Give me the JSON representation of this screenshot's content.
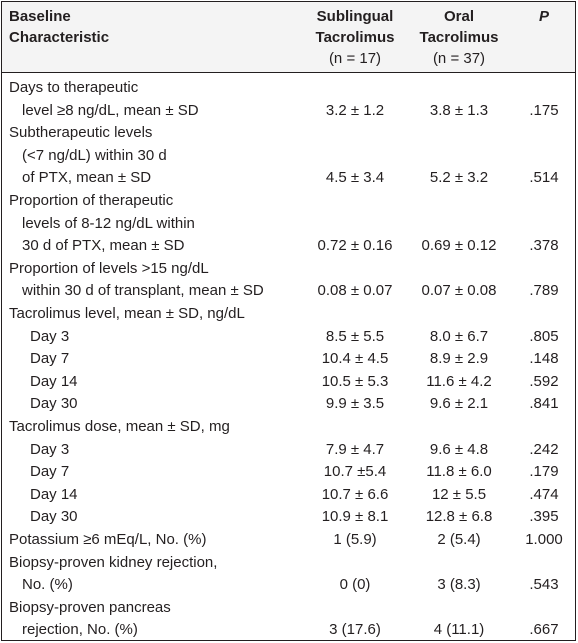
{
  "header": {
    "col1_line1": "Baseline",
    "col1_line2": "Characteristic",
    "col2_line1": "Sublingual",
    "col2_line2": "Tacrolimus",
    "col2_line3": "(n = 17)",
    "col3_line1": "Oral",
    "col3_line2": "Tacrolimus",
    "col3_line3": "(n = 37)",
    "col4": "P"
  },
  "rows": [
    {
      "lines": [
        "Days to therapeutic",
        "level ≥8 ng/dL, mean ± SD"
      ],
      "sl": "3.2 ± 1.2",
      "oral": "3.8 ± 1.3",
      "p": ".175"
    },
    {
      "lines": [
        "Subtherapeutic levels",
        "(<7 ng/dL) within 30 d",
        "of PTX, mean ± SD"
      ],
      "sl": "4.5 ± 3.4",
      "oral": "5.2 ± 3.2",
      "p": ".514"
    },
    {
      "lines": [
        "Proportion of therapeutic",
        "levels of 8-12 ng/dL within",
        "30 d of PTX, mean ± SD"
      ],
      "sl": "0.72 ± 0.16",
      "oral": "0.69 ± 0.12",
      "p": ".378"
    },
    {
      "lines": [
        "Proportion of levels >15 ng/dL",
        "within 30 d of transplant, mean ± SD"
      ],
      "sl": "0.08 ± 0.07",
      "oral": "0.07 ± 0.08",
      "p": ".789"
    },
    {
      "lines": [
        "Tacrolimus level, mean ± SD, ng/dL"
      ]
    },
    {
      "sub": "Day 3",
      "sl": "8.5 ± 5.5",
      "oral": "8.0 ± 6.7",
      "p": ".805"
    },
    {
      "sub": "Day 7",
      "sl": "10.4 ± 4.5",
      "oral": "8.9 ± 2.9",
      "p": ".148"
    },
    {
      "sub": "Day 14",
      "sl": "10.5 ± 5.3",
      "oral": "11.6 ± 4.2",
      "p": ".592"
    },
    {
      "sub": "Day 30",
      "sl": "9.9 ± 3.5",
      "oral": "9.6 ± 2.1",
      "p": ".841"
    },
    {
      "lines": [
        "Tacrolimus dose, mean ± SD, mg"
      ]
    },
    {
      "sub": "Day 3",
      "sl": "7.9 ± 4.7",
      "oral": "9.6 ± 4.8",
      "p": ".242"
    },
    {
      "sub": "Day 7",
      "sl": "10.7 ±5.4",
      "oral": "11.8 ± 6.0",
      "p": ".179"
    },
    {
      "sub": "Day 14",
      "sl": "10.7 ± 6.6",
      "oral": "12 ± 5.5",
      "p": ".474"
    },
    {
      "sub": "Day 30",
      "sl": "10.9 ± 8.1",
      "oral": "12.8 ± 6.8",
      "p": ".395"
    },
    {
      "lines": [
        "Potassium ≥6 mEq/L, No. (%)"
      ],
      "sl": "1 (5.9)",
      "oral": "2 (5.4)",
      "p": "1.000"
    },
    {
      "lines": [
        "Biopsy-proven kidney rejection,",
        "No. (%)"
      ],
      "sl": "0 (0)",
      "oral": "3 (8.3)",
      "p": ".543"
    },
    {
      "lines": [
        "Biopsy-proven pancreas",
        "rejection, No. (%)"
      ],
      "sl": "3 (17.6)",
      "oral": "4 (11.1)",
      "p": ".667"
    }
  ]
}
